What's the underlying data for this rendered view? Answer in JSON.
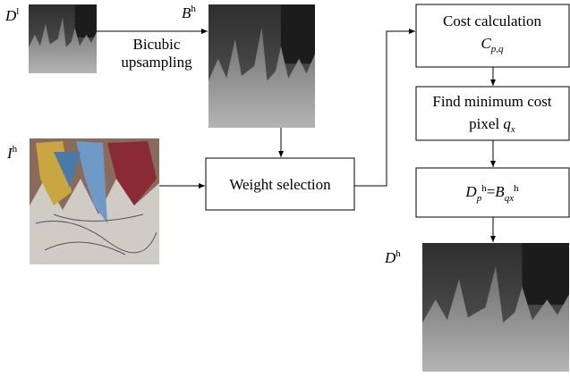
{
  "labels": {
    "d_low": {
      "base": "D",
      "sup": "l"
    },
    "b_high": {
      "base": "B",
      "sup": "h"
    },
    "i_high": {
      "base": "I",
      "sup": "h"
    },
    "d_high": {
      "base": "D",
      "sup": "h"
    }
  },
  "edges": {
    "upsampling": [
      "Bicubic",
      "upsampling"
    ]
  },
  "nodes": [
    {
      "label": "Weight selection"
    },
    {
      "label": "Cost calculation",
      "formula": {
        "base": "C",
        "sub": "p,q"
      }
    },
    {
      "label": "Find minimum cost",
      "line2": "pixel",
      "formula": {
        "base": "q",
        "sub": "x"
      }
    },
    {
      "formula": {
        "lhs": "D",
        "lhs_sub": "p",
        "lhs_sup": "h",
        "op": "=",
        "rhs": "B",
        "rhs_sub": "qx",
        "rhs_sup": "h"
      }
    }
  ]
}
